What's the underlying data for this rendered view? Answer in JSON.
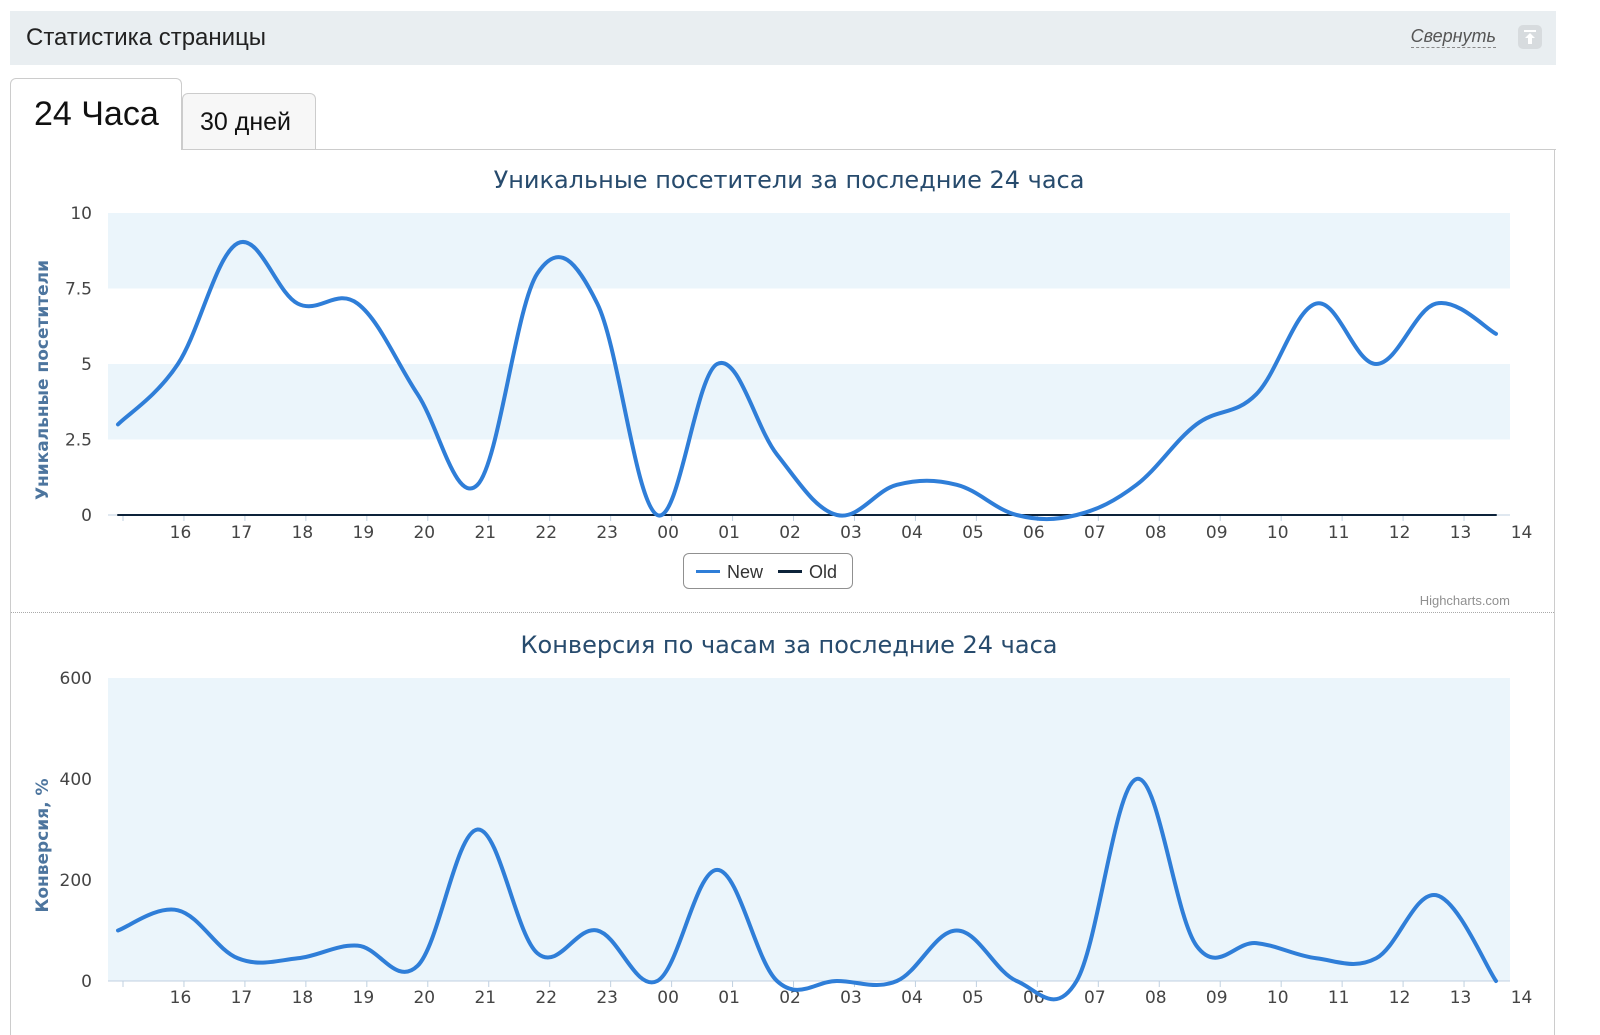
{
  "panel": {
    "title": "Статистика страницы",
    "collapse_label": "Свернуть"
  },
  "tabs": [
    {
      "label": "24 Часа"
    },
    {
      "label": "30 дней"
    }
  ],
  "credits": "Highcharts.com",
  "chart_data": [
    {
      "type": "line",
      "title": "Уникальные посетители за последние 24 часа",
      "ylabel": "Уникальные посетители",
      "ylim": [
        0,
        10
      ],
      "yticks": [
        "0",
        "2.5",
        "5",
        "7.5",
        "10"
      ],
      "categories": [
        "16",
        "17",
        "18",
        "19",
        "20",
        "21",
        "22",
        "23",
        "00",
        "01",
        "02",
        "03",
        "04",
        "05",
        "06",
        "07",
        "08",
        "09",
        "10",
        "11",
        "12",
        "13",
        "14"
      ],
      "series": [
        {
          "name": "New",
          "color": "#2f7ed8",
          "x": [
            "15:30",
            "16:30",
            "17:30",
            "18:30",
            "19:30",
            "20:30",
            "21:30",
            "22:30",
            "23:30",
            "00:30",
            "01:30",
            "02:30",
            "03:30",
            "04:30",
            "05:30",
            "06:30",
            "07:30",
            "08:30",
            "09:30",
            "10:30",
            "11:30",
            "12:30",
            "13:30",
            "14:30"
          ],
          "values": [
            3,
            5,
            9,
            7,
            7,
            4,
            1,
            8,
            7,
            0,
            5,
            2,
            0,
            1,
            1,
            0,
            0,
            1,
            3,
            4,
            7,
            5,
            7,
            6
          ]
        },
        {
          "name": "Old",
          "color": "#0d233a",
          "x": [
            "15:30",
            "16:30",
            "17:30",
            "18:30",
            "19:30",
            "20:30",
            "21:30",
            "22:30",
            "23:30",
            "00:30",
            "01:30",
            "02:30",
            "03:30",
            "04:30",
            "05:30",
            "06:30",
            "07:30",
            "08:30",
            "09:30",
            "10:30",
            "11:30",
            "12:30",
            "13:30",
            "14:30"
          ],
          "values": [
            0,
            0,
            0,
            0,
            0,
            0,
            0,
            0,
            0,
            0,
            0,
            0,
            0,
            0,
            0,
            0,
            0,
            0,
            0,
            0,
            0,
            0,
            0,
            0
          ]
        }
      ],
      "legend": "bottom-center"
    },
    {
      "type": "line",
      "title": "Конверсия по часам за последние 24 часа",
      "ylabel": "Конверсия, %",
      "ylim": [
        0,
        600
      ],
      "yticks": [
        "0",
        "200",
        "400",
        "600"
      ],
      "categories": [
        "16",
        "17",
        "18",
        "19",
        "20",
        "21",
        "22",
        "23",
        "00",
        "01",
        "02",
        "03",
        "04",
        "05",
        "06",
        "07",
        "08",
        "09",
        "10",
        "11",
        "12",
        "13",
        "14"
      ],
      "series": [
        {
          "name": "New",
          "color": "#2f7ed8",
          "x": [
            "15:30",
            "16:30",
            "17:30",
            "18:30",
            "19:30",
            "20:30",
            "21:30",
            "22:30",
            "23:30",
            "00:30",
            "01:30",
            "02:30",
            "03:30",
            "04:30",
            "05:30",
            "06:30",
            "07:30",
            "08:30",
            "09:30",
            "10:30",
            "11:30",
            "12:30",
            "13:30",
            "14:30"
          ],
          "values": [
            100,
            140,
            45,
            45,
            70,
            30,
            300,
            55,
            100,
            0,
            220,
            0,
            0,
            0,
            100,
            0,
            0,
            400,
            70,
            75,
            45,
            45,
            170,
            0
          ]
        }
      ]
    }
  ]
}
